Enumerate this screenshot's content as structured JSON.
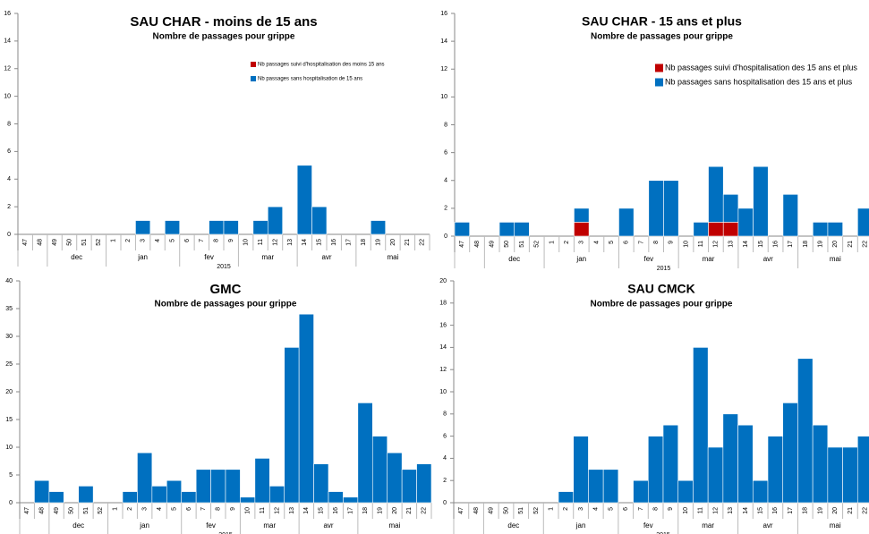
{
  "chart_data": [
    {
      "type": "bar",
      "stacked": true,
      "title": "SAU CHAR - moins de 15 ans",
      "subtitle": "Nombre de passages pour grippe",
      "categories": [
        "47",
        "48",
        "49",
        "50",
        "51",
        "52",
        "1",
        "2",
        "3",
        "4",
        "5",
        "6",
        "7",
        "8",
        "9",
        "10",
        "11",
        "12",
        "13",
        "14",
        "15",
        "16",
        "17",
        "18",
        "19",
        "20",
        "21",
        "22"
      ],
      "month_of_week": [
        null,
        null,
        "dec",
        "dec",
        "dec",
        "dec",
        "jan",
        "jan",
        "jan",
        "jan",
        "jan",
        "fev",
        "fev",
        "fev",
        "fev",
        "mar",
        "mar",
        "mar",
        "mar",
        "avr",
        "avr",
        "avr",
        "avr",
        "mai",
        "mai",
        "mai",
        "mai",
        "mai"
      ],
      "year": "2015",
      "series": [
        {
          "name": "Nb passages suivi d'hospitalisation des moins 15 ans",
          "color": "#c00000",
          "values": [
            0,
            0,
            0,
            0,
            0,
            0,
            0,
            0,
            0,
            0,
            0,
            0,
            0,
            0,
            0,
            0,
            0,
            0,
            0,
            0,
            0,
            0,
            0,
            0,
            0,
            0,
            0,
            0
          ]
        },
        {
          "name": "Nb passages sans hospitalisation de 15 ans",
          "color": "#0070c0",
          "values": [
            0,
            0,
            0,
            0,
            0,
            0,
            0,
            0,
            1,
            0,
            1,
            0,
            0,
            1,
            1,
            0,
            1,
            2,
            0,
            5,
            2,
            0,
            0,
            0,
            1,
            0,
            0,
            0
          ]
        }
      ],
      "ylim": [
        0,
        16
      ],
      "yticks": [
        0,
        2,
        4,
        6,
        8,
        10,
        12,
        14,
        16
      ],
      "legend": "top-right"
    },
    {
      "type": "bar",
      "stacked": true,
      "title": "SAU CHAR - 15 ans et plus",
      "subtitle": "Nombre de passages pour grippe",
      "categories": [
        "47",
        "48",
        "49",
        "50",
        "51",
        "52",
        "1",
        "2",
        "3",
        "4",
        "5",
        "6",
        "7",
        "8",
        "9",
        "10",
        "11",
        "12",
        "13",
        "14",
        "15",
        "16",
        "17",
        "18",
        "19",
        "20",
        "21",
        "22"
      ],
      "month_of_week": [
        null,
        null,
        "dec",
        "dec",
        "dec",
        "dec",
        "jan",
        "jan",
        "jan",
        "jan",
        "jan",
        "fev",
        "fev",
        "fev",
        "fev",
        "mar",
        "mar",
        "mar",
        "mar",
        "avr",
        "avr",
        "avr",
        "avr",
        "mai",
        "mai",
        "mai",
        "mai",
        "mai"
      ],
      "year": "2015",
      "series": [
        {
          "name": "Nb passages suivi d'hospitalisation des 15 ans et plus",
          "color": "#c00000",
          "values": [
            0,
            0,
            0,
            0,
            0,
            0,
            0,
            0,
            1,
            0,
            0,
            0,
            0,
            0,
            0,
            0,
            0,
            1,
            1,
            0,
            0,
            0,
            0,
            0,
            0,
            0,
            0,
            0
          ]
        },
        {
          "name": "Nb passages sans hospitalisation des 15 ans et plus",
          "color": "#0070c0",
          "values": [
            1,
            0,
            0,
            1,
            1,
            0,
            0,
            0,
            1,
            0,
            0,
            2,
            0,
            4,
            4,
            0,
            1,
            4,
            2,
            2,
            5,
            0,
            3,
            0,
            1,
            1,
            0,
            2
          ]
        }
      ],
      "ylim": [
        0,
        16
      ],
      "yticks": [
        0,
        2,
        4,
        6,
        8,
        10,
        12,
        14,
        16
      ],
      "legend": "top-right"
    },
    {
      "type": "bar",
      "title": "GMC",
      "subtitle": "Nombre de passages pour grippe",
      "categories": [
        "47",
        "48",
        "49",
        "50",
        "51",
        "52",
        "1",
        "2",
        "3",
        "4",
        "5",
        "6",
        "7",
        "8",
        "9",
        "10",
        "11",
        "12",
        "13",
        "14",
        "15",
        "16",
        "17",
        "18",
        "19",
        "20",
        "21",
        "22"
      ],
      "month_of_week": [
        null,
        null,
        "dec",
        "dec",
        "dec",
        "dec",
        "jan",
        "jan",
        "jan",
        "jan",
        "jan",
        "fev",
        "fev",
        "fev",
        "fev",
        "mar",
        "mar",
        "mar",
        "mar",
        "avr",
        "avr",
        "avr",
        "avr",
        "mai",
        "mai",
        "mai",
        "mai",
        "mai"
      ],
      "year": "2015",
      "color": "#0070c0",
      "values": [
        0,
        4,
        2,
        0,
        3,
        0,
        0,
        2,
        9,
        3,
        4,
        2,
        6,
        6,
        6,
        1,
        8,
        3,
        28,
        34,
        7,
        2,
        1,
        18,
        12,
        9,
        6,
        7
      ],
      "ylim": [
        0,
        40
      ],
      "yticks": [
        0,
        5,
        10,
        15,
        20,
        25,
        30,
        35,
        40
      ]
    },
    {
      "type": "bar",
      "title": "SAU CMCK",
      "subtitle": "Nombre de passages pour grippe",
      "categories": [
        "47",
        "48",
        "49",
        "50",
        "51",
        "52",
        "1",
        "2",
        "3",
        "4",
        "5",
        "6",
        "7",
        "8",
        "9",
        "10",
        "11",
        "12",
        "13",
        "14",
        "15",
        "16",
        "17",
        "18",
        "19",
        "20",
        "21",
        "22"
      ],
      "month_of_week": [
        null,
        null,
        "dec",
        "dec",
        "dec",
        "dec",
        "jan",
        "jan",
        "jan",
        "jan",
        "jan",
        "fev",
        "fev",
        "fev",
        "fev",
        "mar",
        "mar",
        "mar",
        "mar",
        "avr",
        "avr",
        "avr",
        "avr",
        "mai",
        "mai",
        "mai",
        "mai",
        "mai"
      ],
      "year": "2015",
      "color": "#0070c0",
      "values": [
        0,
        0,
        0,
        0,
        0,
        0,
        0,
        1,
        6,
        3,
        3,
        0,
        2,
        6,
        7,
        2,
        14,
        5,
        8,
        7,
        2,
        6,
        9,
        13,
        7,
        5,
        5,
        6
      ],
      "ylim": [
        0,
        20
      ],
      "yticks": [
        0,
        2,
        4,
        6,
        8,
        10,
        12,
        14,
        16,
        18,
        20
      ]
    }
  ]
}
